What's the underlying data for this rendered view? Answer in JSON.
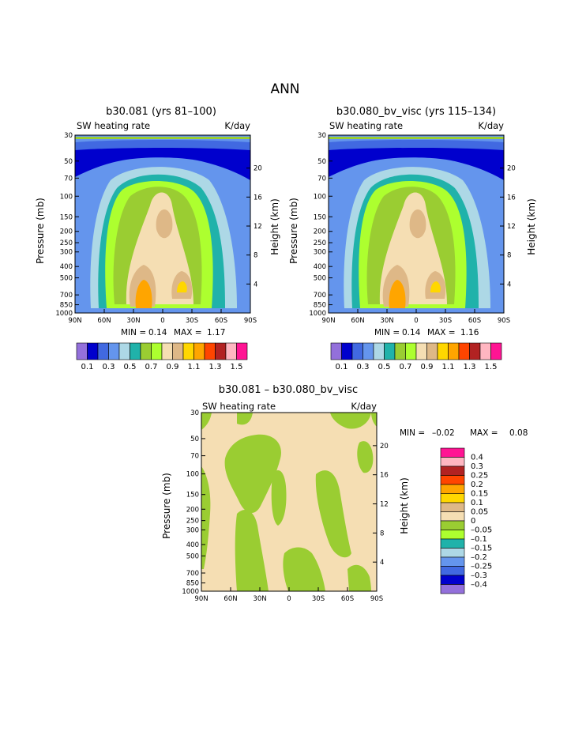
{
  "page_title": "ANN",
  "colors": {
    "levels_abs": [
      "#9370DB",
      "#0000CD",
      "#4169E1",
      "#6495ED",
      "#ADD8E6",
      "#20B2AA",
      "#9ACD32",
      "#ADFF2F",
      "#F5DEB3",
      "#DEB887",
      "#FFD700",
      "#FFA500",
      "#FF4500",
      "#B22222",
      "#FFB6C1",
      "#FF1493"
    ],
    "levels_diff": [
      "#FF1493",
      "#FFB6C1",
      "#B22222",
      "#FF4500",
      "#FFA500",
      "#FFD700",
      "#DEB887",
      "#F5DEB3",
      "#9ACD32",
      "#ADFF2F",
      "#20B2AA",
      "#ADD8E6",
      "#6495ED",
      "#4169E1",
      "#0000CD",
      "#9370DB"
    ]
  },
  "chart_data": [
    {
      "type": "heatmap",
      "title": "b30.081 (yrs 81–100)",
      "left_label": "SW heating rate",
      "right_label": "K/day",
      "xlabel": "",
      "ylabel": "Pressure (mb)",
      "ylabel_right": "Height (km)",
      "x_ticks": [
        "90N",
        "60N",
        "30N",
        "0",
        "30S",
        "60S",
        "90S"
      ],
      "y_ticks": [
        "30",
        "50",
        "70",
        "100",
        "150",
        "200",
        "250",
        "300",
        "400",
        "500",
        "700",
        "850",
        "1000"
      ],
      "y_ticks_right": [
        "20",
        "16",
        "12",
        "8",
        "4"
      ],
      "min_label": "MIN =",
      "min_value": "0.14",
      "max_label": "MAX =",
      "max_value": "1.17",
      "colorbar_labels": [
        "0.1",
        "0.3",
        "0.5",
        "0.7",
        "0.9",
        "1.1",
        "1.3",
        "1.5"
      ]
    },
    {
      "type": "heatmap",
      "title": "b30.080_bv_visc (yrs 115–134)",
      "left_label": "SW heating rate",
      "right_label": "K/day",
      "xlabel": "",
      "ylabel": "Pressure (mb)",
      "ylabel_right": "Height (km)",
      "x_ticks": [
        "90N",
        "60N",
        "30N",
        "0",
        "30S",
        "60S",
        "90S"
      ],
      "y_ticks": [
        "30",
        "50",
        "70",
        "100",
        "150",
        "200",
        "250",
        "300",
        "400",
        "500",
        "700",
        "850",
        "1000"
      ],
      "y_ticks_right": [
        "20",
        "16",
        "12",
        "8",
        "4"
      ],
      "min_label": "MIN =",
      "min_value": "0.14",
      "max_label": "MAX =",
      "max_value": "1.16",
      "colorbar_labels": [
        "0.1",
        "0.3",
        "0.5",
        "0.7",
        "0.9",
        "1.1",
        "1.3",
        "1.5"
      ]
    },
    {
      "type": "heatmap",
      "title": "b30.081 – b30.080_bv_visc",
      "left_label": "SW heating rate",
      "right_label": "K/day",
      "xlabel": "",
      "ylabel": "Pressure (mb)",
      "ylabel_right": "Height (km)",
      "x_ticks": [
        "90N",
        "60N",
        "30N",
        "0",
        "30S",
        "60S",
        "90S"
      ],
      "y_ticks": [
        "30",
        "50",
        "70",
        "100",
        "150",
        "200",
        "250",
        "300",
        "400",
        "500",
        "700",
        "850",
        "1000"
      ],
      "y_ticks_right": [
        "20",
        "16",
        "12",
        "8",
        "4"
      ],
      "min_label": "MIN =",
      "min_value": "–0.02",
      "max_label": "MAX =",
      "max_value": "0.08",
      "colorbar_labels": [
        "0.4",
        "0.3",
        "0.25",
        "0.2",
        "0.15",
        "0.1",
        "0.05",
        "0",
        "–0.05",
        "–0.1",
        "–0.15",
        "–0.2",
        "–0.25",
        "–0.3",
        "–0.4"
      ]
    }
  ]
}
